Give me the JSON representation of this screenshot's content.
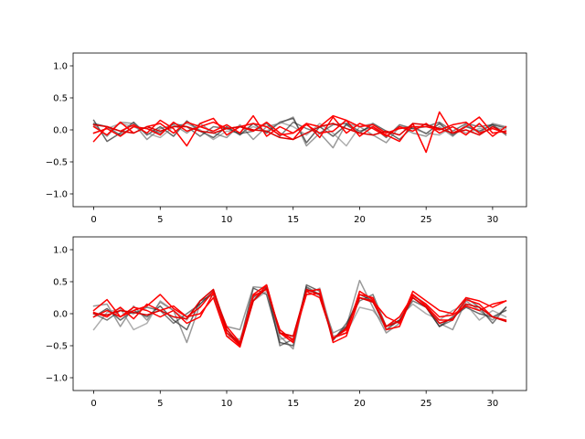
{
  "chart_data": [
    {
      "type": "line",
      "title": "",
      "xlabel": "",
      "ylabel": "",
      "xlim": [
        -1.55,
        32.55
      ],
      "ylim": [
        -1.2,
        1.2
      ],
      "xticks": [
        0,
        5,
        10,
        15,
        20,
        25,
        30
      ],
      "yticks": [
        -1.0,
        -0.5,
        0.0,
        0.5,
        1.0
      ],
      "xtick_labels": [
        "0",
        "5",
        "10",
        "15",
        "20",
        "25",
        "30"
      ],
      "ytick_labels": [
        "−1.0",
        "−0.5",
        "0.0",
        "0.5",
        "1.0"
      ],
      "grid": false,
      "x": [
        0,
        1,
        2,
        3,
        4,
        5,
        6,
        7,
        8,
        9,
        10,
        11,
        12,
        13,
        14,
        15,
        16,
        17,
        18,
        19,
        20,
        21,
        22,
        23,
        24,
        25,
        26,
        27,
        28,
        29,
        30,
        31
      ],
      "series": [
        {
          "color": "#000000",
          "values": [
            0.15,
            -0.18,
            -0.05,
            0.12,
            -0.08,
            0.05,
            -0.1,
            0.14,
            -0.02,
            -0.12,
            0.05,
            -0.08,
            0.1,
            -0.05,
            0.12,
            0.18,
            -0.2,
            0.05,
            -0.1,
            0.08,
            -0.05,
            0.1,
            -0.02,
            -0.15,
            0.05,
            -0.06,
            0.1,
            -0.08,
            0.05,
            -0.02,
            0.08,
            0.03
          ]
        },
        {
          "color": "#555555",
          "values": [
            0.08,
            -0.1,
            0.12,
            0.1,
            -0.15,
            0.02,
            0.08,
            -0.05,
            0.1,
            -0.05,
            -0.12,
            0.08,
            -0.15,
            0.05,
            0.1,
            0.2,
            -0.25,
            -0.05,
            -0.28,
            0.1,
            0.05,
            -0.08,
            -0.2,
            0.05,
            -0.05,
            -0.1,
            0.05,
            -0.1,
            0.08,
            -0.05,
            0.1,
            0.05
          ]
        },
        {
          "color": "#777777",
          "values": [
            -0.05,
            0.02,
            0.1,
            0.05,
            -0.05,
            -0.12,
            0.05,
            0.1,
            0.0,
            -0.15,
            -0.02,
            -0.05,
            0.05,
            -0.02,
            0.12,
            0.05,
            -0.08,
            0.1,
            -0.05,
            -0.25,
            0.05,
            0.1,
            -0.1,
            0.05,
            0.02,
            -0.05,
            -0.08,
            0.05,
            -0.05,
            0.02,
            0.05,
            0.0
          ]
        },
        {
          "color": "#222222",
          "values": [
            0.1,
            0.05,
            -0.08,
            0.05,
            0.02,
            -0.05,
            0.1,
            0.05,
            -0.1,
            0.05,
            0.02,
            -0.06,
            -0.02,
            0.1,
            -0.1,
            0.12,
            0.02,
            -0.05,
            0.08,
            0.1,
            -0.02,
            0.05,
            -0.12,
            0.08,
            0.02,
            0.05,
            0.12,
            -0.02,
            0.1,
            0.05,
            0.08,
            -0.08
          ]
        },
        {
          "color": "#ff0000",
          "values": [
            -0.18,
            0.05,
            -0.02,
            0.08,
            -0.05,
            0.15,
            0.02,
            -0.25,
            0.1,
            0.18,
            -0.08,
            0.05,
            -0.02,
            0.12,
            -0.05,
            -0.15,
            0.1,
            0.05,
            0.22,
            0.15,
            -0.1,
            0.05,
            -0.08,
            -0.18,
            0.1,
            -0.35,
            0.28,
            -0.05,
            0.05,
            0.2,
            -0.05,
            -0.02
          ]
        },
        {
          "color": "#ff0000",
          "values": [
            0.05,
            -0.08,
            0.12,
            -0.05,
            0.05,
            0.1,
            -0.05,
            0.12,
            0.05,
            -0.02,
            0.08,
            -0.05,
            0.22,
            -0.1,
            0.05,
            -0.05,
            0.1,
            -0.12,
            0.2,
            -0.05,
            0.1,
            0.02,
            -0.1,
            0.05,
            -0.02,
            0.1,
            -0.05,
            0.05,
            -0.08,
            0.1,
            -0.1,
            0.05
          ]
        },
        {
          "color": "#ff0000",
          "values": [
            -0.05,
            0.02,
            -0.1,
            0.05,
            0.02,
            -0.08,
            0.12,
            -0.02,
            0.05,
            0.12,
            0.02,
            0.05,
            0.1,
            0.05,
            -0.08,
            -0.05,
            0.08,
            -0.05,
            -0.02,
            0.15,
            0.05,
            0.08,
            -0.05,
            0.02,
            0.05,
            0.05,
            0.0,
            0.08,
            0.12,
            -0.05,
            0.02,
            -0.05
          ]
        },
        {
          "color": "#dd0000",
          "values": [
            0.08,
            0.05,
            -0.02,
            -0.05,
            0.05,
            -0.02,
            0.05,
            0.05,
            -0.02,
            -0.05,
            0.02,
            0.05,
            0.0,
            -0.02,
            -0.12,
            -0.15,
            -0.05,
            0.05,
            0.1,
            0.02,
            -0.05,
            -0.08,
            -0.02,
            -0.08,
            0.1,
            0.08,
            0.02,
            -0.05,
            0.0,
            -0.08,
            0.05,
            -0.05
          ]
        }
      ]
    },
    {
      "type": "line",
      "title": "",
      "xlabel": "",
      "ylabel": "",
      "xlim": [
        -1.55,
        32.55
      ],
      "ylim": [
        -1.2,
        1.2
      ],
      "xticks": [
        0,
        5,
        10,
        15,
        20,
        25,
        30
      ],
      "yticks": [
        -1.0,
        -0.5,
        0.0,
        0.5,
        1.0
      ],
      "xtick_labels": [
        "0",
        "5",
        "10",
        "15",
        "20",
        "25",
        "30"
      ],
      "ytick_labels": [
        "−1.0",
        "−0.5",
        "0.0",
        "0.5",
        "1.0"
      ],
      "grid": false,
      "x": [
        0,
        1,
        2,
        3,
        4,
        5,
        6,
        7,
        8,
        9,
        10,
        11,
        12,
        13,
        14,
        15,
        16,
        17,
        18,
        19,
        20,
        21,
        22,
        23,
        24,
        25,
        26,
        27,
        28,
        29,
        30,
        31
      ],
      "series": [
        {
          "color": "#000000",
          "values": [
            -0.05,
            0.08,
            -0.1,
            0.05,
            -0.05,
            0.12,
            -0.1,
            -0.25,
            0.2,
            0.3,
            -0.3,
            -0.45,
            0.4,
            0.3,
            -0.45,
            -0.5,
            0.45,
            0.35,
            -0.4,
            -0.2,
            0.3,
            0.2,
            -0.25,
            -0.1,
            0.25,
            0.1,
            -0.2,
            -0.05,
            0.1,
            0.0,
            -0.05,
            0.05
          ]
        },
        {
          "color": "#555555",
          "values": [
            0.12,
            0.15,
            -0.2,
            0.12,
            -0.1,
            0.18,
            0.05,
            -0.45,
            0.15,
            0.35,
            -0.2,
            -0.25,
            0.42,
            0.4,
            -0.35,
            -0.55,
            0.4,
            0.28,
            -0.3,
            -0.2,
            0.52,
            0.1,
            -0.3,
            -0.15,
            0.3,
            0.15,
            -0.15,
            -0.25,
            0.2,
            0.05,
            -0.1,
            0.1
          ]
        },
        {
          "color": "#777777",
          "values": [
            -0.25,
            0.02,
            0.08,
            -0.25,
            -0.15,
            0.2,
            0.05,
            -0.1,
            0.2,
            0.3,
            -0.35,
            -0.4,
            0.2,
            0.35,
            -0.4,
            -0.35,
            0.3,
            0.4,
            -0.35,
            -0.3,
            0.1,
            0.05,
            -0.2,
            -0.05,
            0.15,
            0.0,
            -0.1,
            0.05,
            0.15,
            -0.1,
            0.05,
            -0.05
          ]
        },
        {
          "color": "#222222",
          "values": [
            0.0,
            -0.1,
            0.05,
            0.0,
            0.1,
            0.05,
            -0.15,
            0.0,
            0.15,
            0.35,
            -0.25,
            -0.5,
            0.25,
            0.42,
            -0.5,
            -0.4,
            0.42,
            0.3,
            -0.42,
            -0.15,
            0.2,
            0.3,
            -0.2,
            -0.1,
            0.2,
            0.1,
            -0.2,
            -0.1,
            0.25,
            0.1,
            -0.15,
            0.1
          ]
        },
        {
          "color": "#ff0000",
          "values": [
            0.05,
            0.22,
            -0.05,
            0.05,
            0.12,
            0.3,
            0.08,
            -0.05,
            0.1,
            0.35,
            -0.3,
            -0.5,
            0.3,
            0.45,
            -0.3,
            -0.45,
            0.35,
            0.38,
            -0.45,
            -0.35,
            0.25,
            0.2,
            -0.05,
            -0.15,
            0.35,
            0.2,
            0.05,
            0.0,
            0.25,
            0.2,
            0.1,
            0.2
          ]
        },
        {
          "color": "#ff0000",
          "values": [
            0.02,
            -0.05,
            0.1,
            -0.08,
            0.15,
            0.05,
            0.12,
            -0.05,
            0.0,
            0.25,
            -0.35,
            -0.52,
            0.2,
            0.45,
            -0.3,
            -0.4,
            0.3,
            0.32,
            -0.38,
            -0.25,
            0.3,
            0.25,
            -0.25,
            -0.2,
            0.3,
            0.12,
            -0.1,
            -0.1,
            0.22,
            0.15,
            -0.05,
            -0.1
          ]
        },
        {
          "color": "#ff0000",
          "values": [
            -0.05,
            0.05,
            -0.05,
            0.1,
            0.05,
            -0.05,
            0.05,
            -0.15,
            -0.05,
            0.32,
            -0.2,
            -0.45,
            0.28,
            0.38,
            -0.25,
            -0.42,
            0.35,
            0.25,
            -0.38,
            -0.3,
            0.35,
            0.22,
            -0.2,
            -0.05,
            0.28,
            0.15,
            -0.05,
            -0.02,
            0.12,
            0.05,
            0.15,
            0.2
          ]
        },
        {
          "color": "#dd0000",
          "values": [
            0.0,
            -0.02,
            0.05,
            0.02,
            -0.02,
            0.05,
            -0.05,
            -0.08,
            0.2,
            0.38,
            -0.25,
            -0.48,
            0.2,
            0.4,
            -0.3,
            -0.35,
            0.38,
            0.3,
            -0.4,
            -0.22,
            0.25,
            0.18,
            -0.2,
            -0.12,
            0.25,
            0.1,
            -0.15,
            -0.08,
            0.15,
            0.1,
            -0.05,
            -0.12
          ]
        }
      ]
    }
  ]
}
